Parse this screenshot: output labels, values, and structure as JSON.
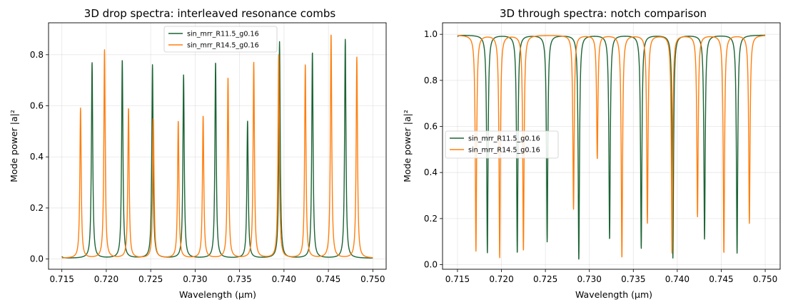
{
  "chart_data": [
    {
      "type": "line",
      "title": "3D drop spectra: interleaved resonance combs",
      "xlabel": "Wavelength (µm)",
      "ylabel": "Mode power |a|²",
      "xlim": [
        0.7135,
        0.7515
      ],
      "ylim": [
        -0.04,
        0.925
      ],
      "xticks": [
        "0.715",
        "0.720",
        "0.725",
        "0.730",
        "0.735",
        "0.740",
        "0.745",
        "0.750"
      ],
      "xtick_values": [
        0.715,
        0.72,
        0.725,
        0.73,
        0.735,
        0.74,
        0.745,
        0.75
      ],
      "yticks": [
        "0.0",
        "0.2",
        "0.4",
        "0.6",
        "0.8"
      ],
      "ytick_values": [
        0.0,
        0.2,
        0.4,
        0.6,
        0.8
      ],
      "grid": true,
      "legend_position": "upper-center",
      "mode": "peak",
      "baseline": 0.003,
      "linewidth_um": 9e-05,
      "x_start": 0.715,
      "x_end": 0.75,
      "series": [
        {
          "name": "sin_mrr_R11.5_g0.16",
          "color": "#1b6434",
          "resonances": [
            {
              "x": 0.7148,
              "y": 0.04
            },
            {
              "x": 0.7184,
              "y": 0.77
            },
            {
              "x": 0.7218,
              "y": 0.78
            },
            {
              "x": 0.7252,
              "y": 0.76
            },
            {
              "x": 0.7287,
              "y": 0.72
            },
            {
              "x": 0.7323,
              "y": 0.77
            },
            {
              "x": 0.7359,
              "y": 0.54
            },
            {
              "x": 0.7395,
              "y": 0.85
            },
            {
              "x": 0.7432,
              "y": 0.81
            },
            {
              "x": 0.7469,
              "y": 0.86
            }
          ]
        },
        {
          "name": "sin_mrr_R14.5_g0.16",
          "color": "#ff7f0e",
          "resonances": [
            {
              "x": 0.7171,
              "y": 0.59
            },
            {
              "x": 0.7198,
              "y": 0.82
            },
            {
              "x": 0.7225,
              "y": 0.59
            },
            {
              "x": 0.7253,
              "y": 0.55
            },
            {
              "x": 0.7281,
              "y": 0.54
            },
            {
              "x": 0.7309,
              "y": 0.56
            },
            {
              "x": 0.7337,
              "y": 0.71
            },
            {
              "x": 0.7366,
              "y": 0.77
            },
            {
              "x": 0.7394,
              "y": 0.8
            },
            {
              "x": 0.7424,
              "y": 0.76
            },
            {
              "x": 0.7453,
              "y": 0.88
            },
            {
              "x": 0.7482,
              "y": 0.79
            }
          ]
        }
      ]
    },
    {
      "type": "line",
      "title": "3D through spectra: notch comparison",
      "xlabel": "Wavelength (µm)",
      "ylabel": "Mode power |a|²",
      "xlim": [
        0.7133,
        0.7517
      ],
      "ylim": [
        -0.02,
        1.05
      ],
      "xticks": [
        "0.715",
        "0.720",
        "0.725",
        "0.730",
        "0.735",
        "0.740",
        "0.745",
        "0.750"
      ],
      "xtick_values": [
        0.715,
        0.72,
        0.725,
        0.73,
        0.735,
        0.74,
        0.745,
        0.75
      ],
      "yticks": [
        "0.0",
        "0.2",
        "0.4",
        "0.6",
        "0.8",
        "1.0"
      ],
      "ytick_values": [
        0.0,
        0.2,
        0.4,
        0.6,
        0.8,
        1.0
      ],
      "grid": true,
      "legend_position": "center-left",
      "mode": "notch",
      "baseline": 0.997,
      "linewidth_um": 9e-05,
      "x_start": 0.715,
      "x_end": 0.75,
      "series": [
        {
          "name": "sin_mrr_R11.5_g0.16",
          "color": "#1b6434",
          "resonances": [
            {
              "x": 0.7148,
              "y": 0.96
            },
            {
              "x": 0.7184,
              "y": 0.05
            },
            {
              "x": 0.7218,
              "y": 0.05
            },
            {
              "x": 0.7252,
              "y": 0.1
            },
            {
              "x": 0.7288,
              "y": 0.02
            },
            {
              "x": 0.7323,
              "y": 0.11
            },
            {
              "x": 0.7359,
              "y": 0.07
            },
            {
              "x": 0.7395,
              "y": 0.03
            },
            {
              "x": 0.7431,
              "y": 0.11
            },
            {
              "x": 0.7468,
              "y": 0.05
            }
          ]
        },
        {
          "name": "sin_mrr_R14.5_g0.16",
          "color": "#ff7f0e",
          "resonances": [
            {
              "x": 0.7171,
              "y": 0.06
            },
            {
              "x": 0.7198,
              "y": 0.03
            },
            {
              "x": 0.7225,
              "y": 0.06
            },
            {
              "x": 0.7282,
              "y": 0.24
            },
            {
              "x": 0.7309,
              "y": 0.46
            },
            {
              "x": 0.7337,
              "y": 0.03
            },
            {
              "x": 0.7366,
              "y": 0.18
            },
            {
              "x": 0.7394,
              "y": 0.05
            },
            {
              "x": 0.7423,
              "y": 0.21
            },
            {
              "x": 0.7453,
              "y": 0.05
            },
            {
              "x": 0.7482,
              "y": 0.18
            }
          ]
        }
      ]
    }
  ]
}
